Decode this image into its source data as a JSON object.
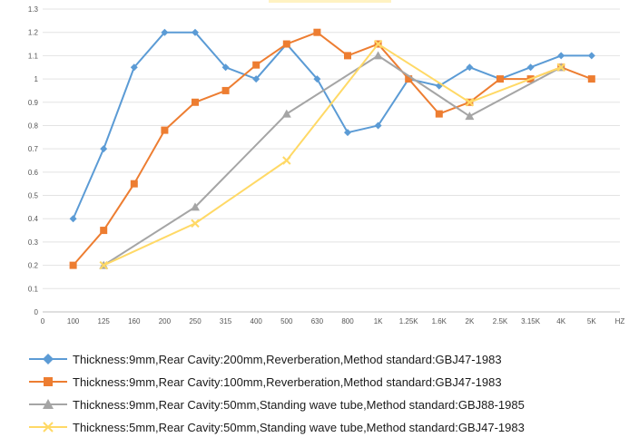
{
  "chart_data": {
    "type": "line",
    "title": "",
    "xlabel": "HZ",
    "ylabel": "",
    "categories": [
      "0",
      "100",
      "125",
      "160",
      "200",
      "250",
      "315",
      "400",
      "500",
      "630",
      "800",
      "1K",
      "1.25K",
      "1.6K",
      "2K",
      "2.5K",
      "3.15K",
      "4K",
      "5K"
    ],
    "ylim": [
      0,
      1.3
    ],
    "yticks": [
      "0",
      "0.1",
      "0.2",
      "0.3",
      "0.4",
      "0.5",
      "0.6",
      "0.7",
      "0.8",
      "0.9",
      "1",
      "1.1",
      "1.2",
      "1.3"
    ],
    "grid": "horizontal",
    "legend_position": "bottom",
    "series": [
      {
        "name": "Thickness:9mm,Rear Cavity:200mm,Reverberation,Method standard:GBJ47-1983",
        "color": "#5b9bd5",
        "marker": "diamond",
        "values": [
          null,
          0.4,
          0.7,
          1.05,
          1.2,
          1.2,
          1.05,
          1.0,
          1.15,
          1.0,
          0.77,
          0.8,
          1.0,
          0.97,
          1.05,
          1.0,
          1.05,
          1.1,
          1.1
        ]
      },
      {
        "name": "Thickness:9mm,Rear Cavity:100mm,Reverberation,Method standard:GBJ47-1983",
        "color": "#ed7d31",
        "marker": "square",
        "values": [
          null,
          0.2,
          0.35,
          0.55,
          0.78,
          0.9,
          0.95,
          1.06,
          1.15,
          1.2,
          1.1,
          1.15,
          1.0,
          0.85,
          0.9,
          1.0,
          1.0,
          1.05,
          1.0
        ]
      },
      {
        "name": "Thickness:9mm,Rear Cavity:50mm,Standing wave tube,Method standard:GBJ88-1985",
        "color": "#a5a5a5",
        "marker": "triangle",
        "values": [
          null,
          null,
          0.2,
          null,
          null,
          0.45,
          null,
          null,
          0.85,
          null,
          null,
          1.1,
          null,
          null,
          0.84,
          null,
          null,
          1.05,
          null
        ]
      },
      {
        "name": "Thickness:5mm,Rear Cavity:50mm,Standing wave tube,Method standard:GBJ47-1983",
        "color": "#ffd966",
        "marker": "x",
        "values": [
          null,
          null,
          0.2,
          null,
          null,
          0.38,
          null,
          null,
          0.65,
          null,
          null,
          1.15,
          null,
          null,
          0.9,
          null,
          null,
          1.05,
          null
        ]
      }
    ]
  }
}
